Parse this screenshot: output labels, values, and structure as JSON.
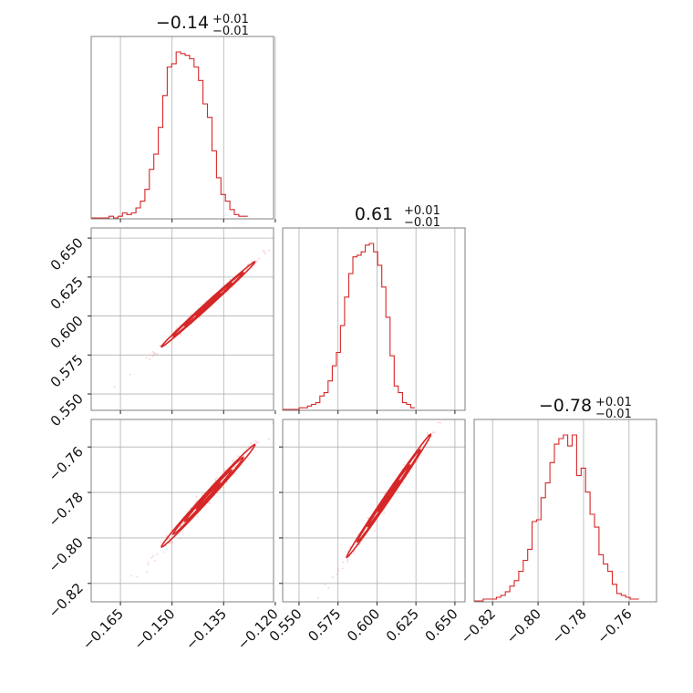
{
  "chart_data": {
    "type": "corner",
    "color": "#d62728",
    "grid": true,
    "parameters": [
      {
        "id": "p1",
        "title": {
          "median": "−0.14",
          "plus": "+0.01",
          "minus": "−0.01"
        },
        "range": [
          -0.1735,
          -0.1205
        ],
        "ticks": [
          -0.165,
          -0.15,
          -0.135,
          -0.12
        ],
        "tick_labels": [
          "−0.165",
          "−0.150",
          "−0.135",
          "−0.120"
        ],
        "hist": {
          "start": -0.1735,
          "bin_width": 0.0013,
          "counts": [
            0,
            0,
            0,
            0,
            1,
            0,
            1,
            3,
            2,
            3,
            6,
            10,
            17,
            29,
            38,
            54,
            73,
            90,
            92,
            99,
            98,
            97,
            95,
            90,
            82,
            68,
            60,
            40,
            24,
            14,
            10,
            5,
            2,
            1,
            1
          ]
        }
      },
      {
        "id": "p2",
        "title": {
          "median": "0.61",
          "plus": "+0.01",
          "minus": "−0.01"
        },
        "range": [
          0.5395,
          0.6565
        ],
        "ticks": [
          0.55,
          0.575,
          0.6,
          0.625,
          0.65
        ],
        "tick_labels": [
          "0.550",
          "0.575",
          "0.600",
          "0.625",
          "0.650"
        ],
        "hist": {
          "start": 0.5395,
          "bin_width": 0.00265,
          "counts": [
            0,
            0,
            0,
            0,
            1,
            1,
            2,
            3,
            4,
            8,
            10,
            17,
            26,
            34,
            50,
            67,
            81,
            91,
            92,
            94,
            98,
            99,
            94,
            86,
            73,
            55,
            32,
            14,
            10,
            4,
            3,
            1
          ]
        }
      },
      {
        "id": "p3",
        "title": {
          "median": "−0.78",
          "plus": "+0.01",
          "minus": "−0.01"
        },
        "range": [
          -0.8281,
          -0.7479
        ],
        "ticks": [
          -0.82,
          -0.8,
          -0.78,
          -0.76
        ],
        "tick_labels": [
          "−0.82",
          "−0.80",
          "−0.78",
          "−0.76"
        ],
        "hist": {
          "start": -0.8281,
          "bin_width": 0.00196,
          "counts": [
            0,
            0,
            1,
            1,
            1,
            2,
            3,
            5,
            8,
            11,
            16,
            22,
            28,
            43,
            44,
            56,
            64,
            75,
            85,
            88,
            90,
            84,
            90,
            68,
            72,
            59,
            47,
            40,
            25,
            20,
            16,
            9,
            4,
            3,
            2,
            1,
            1
          ]
        }
      }
    ]
  }
}
